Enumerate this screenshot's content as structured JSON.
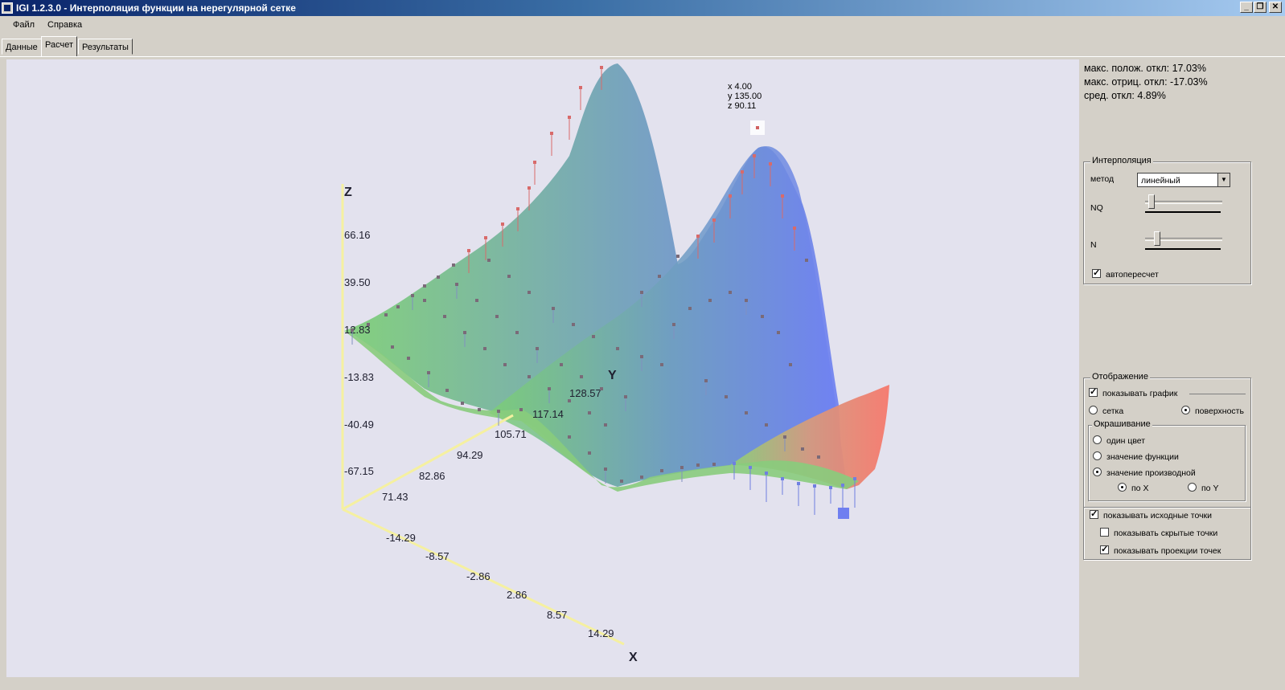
{
  "window": {
    "title": "IGI 1.2.3.0 - Интерполяция функции на нерегулярной сетке"
  },
  "menu": {
    "file": "Файл",
    "help": "Справка"
  },
  "tabs": [
    {
      "label": "Данные"
    },
    {
      "label": "Расчет"
    },
    {
      "label": "Результаты"
    }
  ],
  "stats": {
    "max_pos": "макс. полож. откл: 17.03%",
    "max_neg": "макс. отриц. откл: -17.03%",
    "avg": "сред. откл: 4.89%"
  },
  "plot": {
    "axis_z": "Z",
    "axis_y": "Y",
    "axis_x": "X",
    "z_ticks": [
      "66.16",
      "39.50",
      "12.83",
      "-13.83",
      "-40.49",
      "-67.15"
    ],
    "y_ticks": [
      "128.57",
      "117.14",
      "105.71",
      "94.29",
      "82.86",
      "71.43"
    ],
    "x_ticks": [
      "-14.29",
      "-8.57",
      "-2.86",
      "2.86",
      "8.57",
      "14.29"
    ],
    "tooltip": {
      "x": "x 4.00",
      "y": "y 135.00",
      "z": "z 90.11"
    },
    "colors": {
      "low": "#6fcf6f",
      "mid": "#6f8ff0",
      "high": "#f07a6f",
      "axis": "#f5f0a0"
    }
  },
  "interpolation": {
    "legend": "Интерполяция",
    "method_label": "метод",
    "method_value": "линейный",
    "nq_label": "NQ",
    "n_label": "N",
    "nq_level": 0.05,
    "n_level": 0.12,
    "auto_label": "автопересчет",
    "auto_checked": true
  },
  "display": {
    "legend": "Отображение",
    "show_graph": "показывать график",
    "mesh": "сетка",
    "surface": "поверхность",
    "coloring_legend": "Окрашивание",
    "one_color": "один цвет",
    "func_value": "значение функции",
    "deriv_value": "значение производной",
    "by_x": "по X",
    "by_y": "по Y",
    "show_source": "показывать исходные точки",
    "show_hidden": "показывать скрытые точки",
    "show_proj": "показывать проекции точек"
  }
}
